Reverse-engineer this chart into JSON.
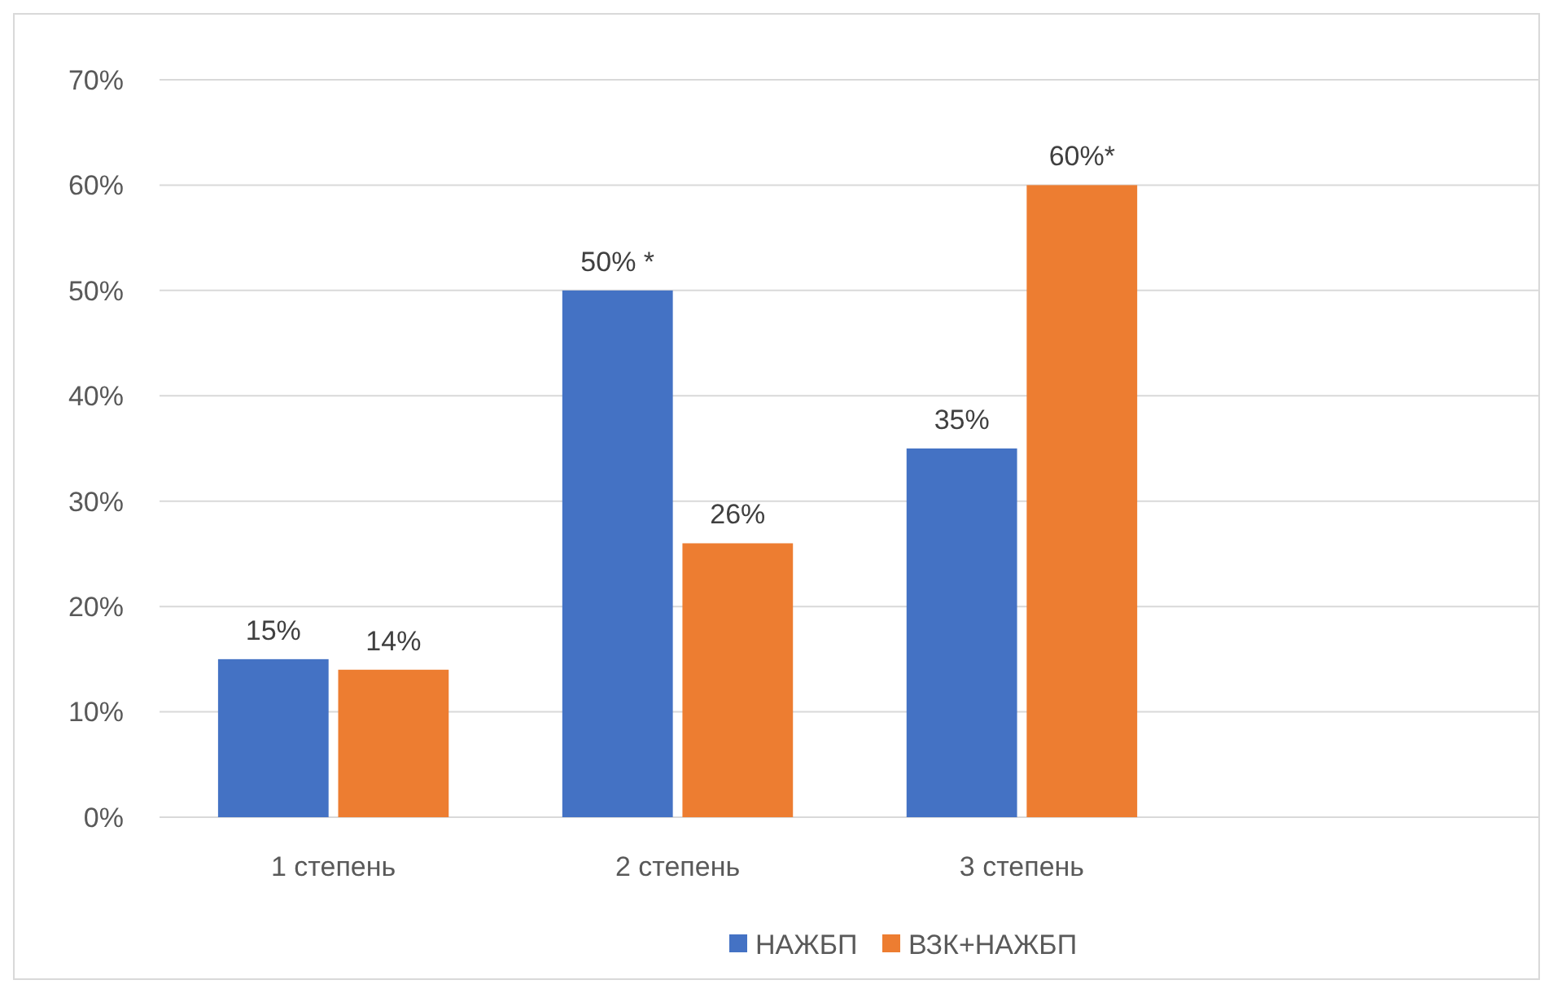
{
  "chart_data": {
    "type": "bar",
    "categories": [
      "1 степень",
      "2 степень",
      "3 степень",
      null
    ],
    "series": [
      {
        "name": "НАЖБП",
        "color": "#4472c4",
        "values": [
          15,
          50,
          35,
          null
        ],
        "value_labels": [
          "15%",
          "50% *",
          "35%",
          null
        ]
      },
      {
        "name": "ВЗК+НАЖБП",
        "color": "#ed7d31",
        "values": [
          14,
          26,
          60,
          null
        ],
        "value_labels": [
          "14%",
          "26%",
          "60%*",
          null
        ]
      }
    ],
    "ylim": [
      0,
      70
    ],
    "yticks": [
      {
        "value": 0,
        "label": "0%"
      },
      {
        "value": 10,
        "label": "10%"
      },
      {
        "value": 20,
        "label": "20%"
      },
      {
        "value": 30,
        "label": "30%"
      },
      {
        "value": 40,
        "label": "40%"
      },
      {
        "value": 50,
        "label": "50%"
      },
      {
        "value": 60,
        "label": "60%"
      },
      {
        "value": 70,
        "label": "70%"
      }
    ],
    "grid": "y",
    "legend": "bottom"
  }
}
